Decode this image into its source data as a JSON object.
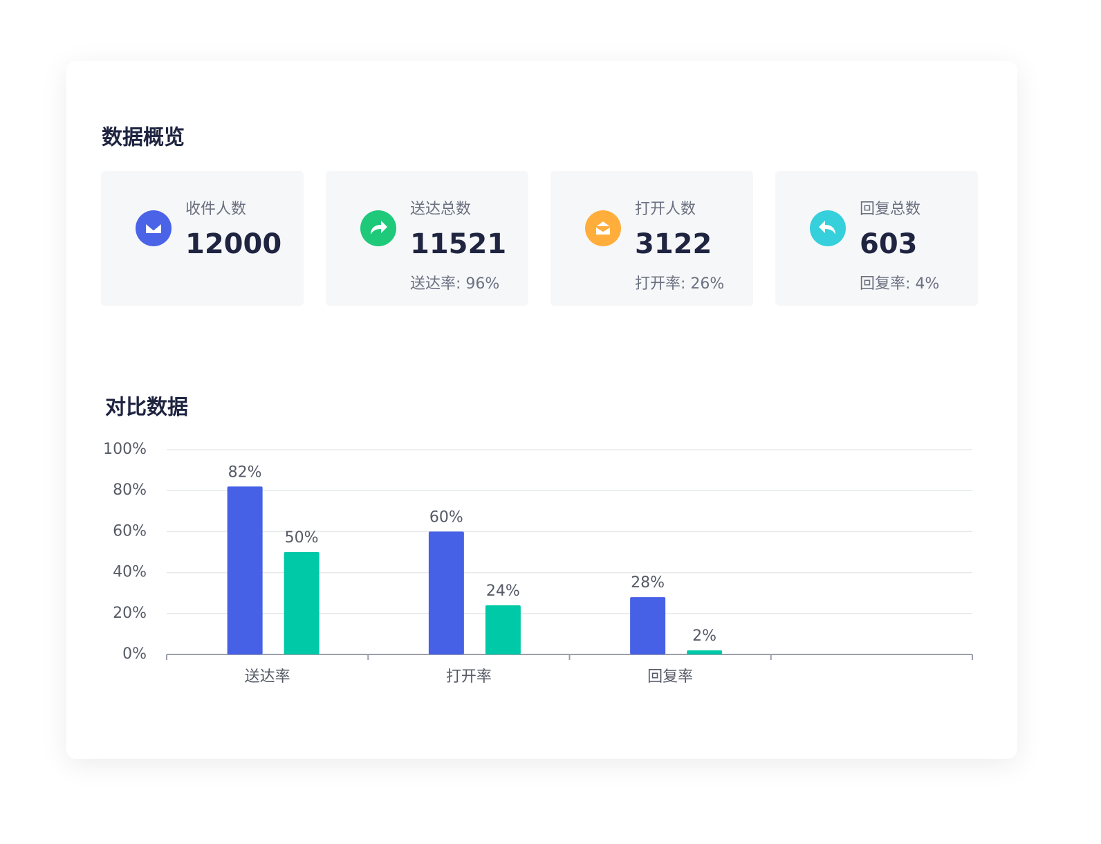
{
  "overview": {
    "title": "数据概览",
    "cards": [
      {
        "label": "收件人数",
        "value": 12000
      },
      {
        "label": "送达总数",
        "value": 11521,
        "rate": "送达率: 96%"
      },
      {
        "label": "打开人数",
        "value": 3122,
        "rate": "打开率: 26%"
      },
      {
        "label": "回复总数",
        "value": 603,
        "rate": "回复率: 4%"
      }
    ]
  },
  "chart_data": {
    "type": "bar",
    "title": "对比数据",
    "categories": [
      "送达率",
      "打开率",
      "回复率",
      null
    ],
    "series": [
      {
        "color": "#4660e6",
        "values": [
          82,
          60,
          28,
          null
        ],
        "value_labels": [
          "82%",
          "60%",
          "28%",
          null
        ]
      },
      {
        "color": "#00c9a7",
        "values": [
          50,
          24,
          2,
          null
        ],
        "value_labels": [
          "50%",
          "24%",
          "2%",
          null
        ]
      }
    ],
    "ylim": [
      0,
      100
    ],
    "yticks": [
      {
        "value": 0,
        "label": "0%"
      },
      {
        "value": 20,
        "label": "20%"
      },
      {
        "value": 40,
        "label": "40%"
      },
      {
        "value": 60,
        "label": "60%"
      },
      {
        "value": 80,
        "label": "80%"
      },
      {
        "value": 100,
        "label": "100%"
      }
    ],
    "grid": true
  }
}
